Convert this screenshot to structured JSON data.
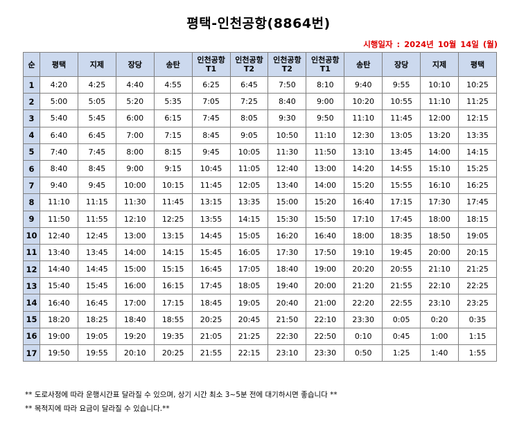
{
  "title": "평택-인천공항(8864번)",
  "date_line": "시행일자 :  2024년 10월 14일 (월)",
  "headers": [
    "순",
    "평택",
    "지제",
    "장당",
    "송탄",
    "인천공항 T1",
    "인천공항 T2",
    "인천공항 T2",
    "인천공항 T1",
    "송탄",
    "장당",
    "지제",
    "평택"
  ],
  "rows": [
    [
      "1",
      "4:20",
      "4:25",
      "4:40",
      "4:55",
      "6:25",
      "6:45",
      "7:50",
      "8:10",
      "9:40",
      "9:55",
      "10:10",
      "10:25"
    ],
    [
      "2",
      "5:00",
      "5:05",
      "5:20",
      "5:35",
      "7:05",
      "7:25",
      "8:40",
      "9:00",
      "10:20",
      "10:55",
      "11:10",
      "11:25"
    ],
    [
      "3",
      "5:40",
      "5:45",
      "6:00",
      "6:15",
      "7:45",
      "8:05",
      "9:30",
      "9:50",
      "11:10",
      "11:45",
      "12:00",
      "12:15"
    ],
    [
      "4",
      "6:40",
      "6:45",
      "7:00",
      "7:15",
      "8:45",
      "9:05",
      "10:50",
      "11:10",
      "12:30",
      "13:05",
      "13:20",
      "13:35"
    ],
    [
      "5",
      "7:40",
      "7:45",
      "8:00",
      "8:15",
      "9:45",
      "10:05",
      "11:30",
      "11:50",
      "13:10",
      "13:45",
      "14:00",
      "14:15"
    ],
    [
      "6",
      "8:40",
      "8:45",
      "9:00",
      "9:15",
      "10:45",
      "11:05",
      "12:40",
      "13:00",
      "14:20",
      "14:55",
      "15:10",
      "15:25"
    ],
    [
      "7",
      "9:40",
      "9:45",
      "10:00",
      "10:15",
      "11:45",
      "12:05",
      "13:40",
      "14:00",
      "15:20",
      "15:55",
      "16:10",
      "16:25"
    ],
    [
      "8",
      "11:10",
      "11:15",
      "11:30",
      "11:45",
      "13:15",
      "13:35",
      "15:00",
      "15:20",
      "16:40",
      "17:15",
      "17:30",
      "17:45"
    ],
    [
      "9",
      "11:50",
      "11:55",
      "12:10",
      "12:25",
      "13:55",
      "14:15",
      "15:30",
      "15:50",
      "17:10",
      "17:45",
      "18:00",
      "18:15"
    ],
    [
      "10",
      "12:40",
      "12:45",
      "13:00",
      "13:15",
      "14:45",
      "15:05",
      "16:20",
      "16:40",
      "18:00",
      "18:35",
      "18:50",
      "19:05"
    ],
    [
      "11",
      "13:40",
      "13:45",
      "14:00",
      "14:15",
      "15:45",
      "16:05",
      "17:30",
      "17:50",
      "19:10",
      "19:45",
      "20:00",
      "20:15"
    ],
    [
      "12",
      "14:40",
      "14:45",
      "15:00",
      "15:15",
      "16:45",
      "17:05",
      "18:40",
      "19:00",
      "20:20",
      "20:55",
      "21:10",
      "21:25"
    ],
    [
      "13",
      "15:40",
      "15:45",
      "16:00",
      "16:15",
      "17:45",
      "18:05",
      "19:40",
      "20:00",
      "21:20",
      "21:55",
      "22:10",
      "22:25"
    ],
    [
      "14",
      "16:40",
      "16:45",
      "17:00",
      "17:15",
      "18:45",
      "19:05",
      "20:40",
      "21:00",
      "22:20",
      "22:55",
      "23:10",
      "23:25"
    ],
    [
      "15",
      "18:20",
      "18:25",
      "18:40",
      "18:55",
      "20:25",
      "20:45",
      "21:50",
      "22:10",
      "23:30",
      "0:05",
      "0:20",
      "0:35"
    ],
    [
      "16",
      "19:00",
      "19:05",
      "19:20",
      "19:35",
      "21:05",
      "21:25",
      "22:30",
      "22:50",
      "0:10",
      "0:45",
      "1:00",
      "1:15"
    ],
    [
      "17",
      "19:50",
      "19:55",
      "20:10",
      "20:25",
      "21:55",
      "22:15",
      "23:10",
      "23:30",
      "0:50",
      "1:25",
      "1:40",
      "1:55"
    ]
  ],
  "notes": [
    "** 도로사정에 따라 운행시간표 달라질 수 있으며, 상기 시간 최소 3~5분 전에 대기하시면 좋습니다 **",
    "** 목적지에 따라 요금이 달라질 수 있습니다.**"
  ],
  "colors": {
    "header_bg": "#ccd9ee",
    "date_red": "#e00000",
    "border": "#7f7f7f"
  }
}
